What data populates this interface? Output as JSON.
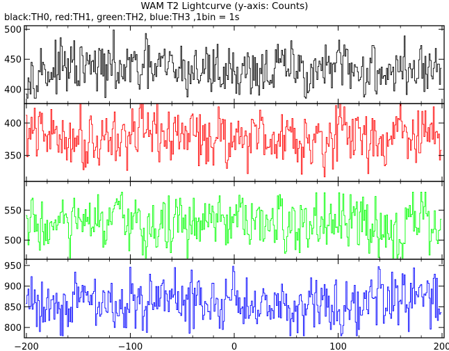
{
  "title": "WAM T2 Lightcurve (y-axis: Counts)",
  "subtitle": "black:TH0, red:TH1, green:TH2, blue:TH3 ,1bin = 1s",
  "chart_data": {
    "type": "line",
    "title": "WAM T2 Lightcurve (y-axis: Counts)",
    "xlabel": "",
    "ylabel": "Counts",
    "xlim": [
      -202,
      202
    ],
    "xticks": [
      -200,
      -100,
      0,
      100,
      200
    ],
    "x_step": 1,
    "x_start": -200,
    "x_end": 199,
    "panels": [
      {
        "series": "TH0",
        "color": "#000000",
        "ylim": [
          376,
          506
        ],
        "yticks": [
          400,
          450,
          500
        ],
        "mean": 432,
        "amplitude": 22,
        "min": 385,
        "max": 505
      },
      {
        "series": "TH1",
        "color": "#ff0000",
        "ylim": [
          310,
          430
        ],
        "yticks": [
          350,
          400
        ],
        "mean": 380,
        "amplitude": 22,
        "min": 315,
        "max": 430
      },
      {
        "series": "TH2",
        "color": "#00ff00",
        "ylim": [
          468,
          598
        ],
        "yticks": [
          500,
          550
        ],
        "mean": 524,
        "amplitude": 24,
        "min": 470,
        "max": 580
      },
      {
        "series": "TH3",
        "color": "#0000ff",
        "ylim": [
          775,
          965
        ],
        "yticks": [
          800,
          850,
          900,
          950
        ],
        "mean": 860,
        "amplitude": 36,
        "min": 780,
        "max": 960
      }
    ]
  }
}
